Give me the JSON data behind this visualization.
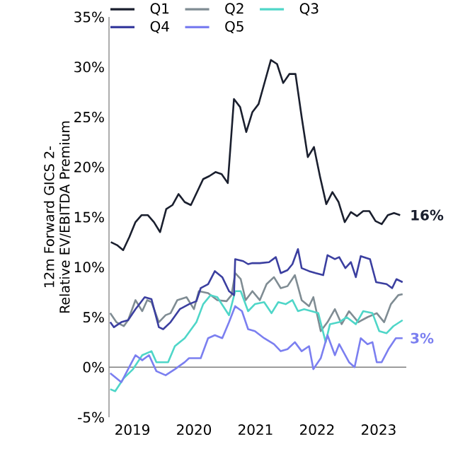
{
  "chart_data": {
    "type": "line",
    "ylabel": "12m Forward GICS 2-Relative EV/EBITDA Premium",
    "legend": "top left",
    "xlim": [
      2018.62,
      2023.45
    ],
    "xticks": [
      2019,
      2020,
      2021,
      2022,
      2023
    ],
    "ylim": [
      -5,
      35
    ],
    "yticks": [
      {
        "value": -5,
        "label": "-5%"
      },
      {
        "value": 0,
        "label": "0%"
      },
      {
        "value": 5,
        "label": "5%"
      },
      {
        "value": 10,
        "label": "10%"
      },
      {
        "value": 15,
        "label": "15%"
      },
      {
        "value": 20,
        "label": "20%"
      },
      {
        "value": 25,
        "label": "25%"
      },
      {
        "value": 30,
        "label": "30%"
      },
      {
        "value": 35,
        "label": "35%"
      }
    ],
    "ref_lines": [
      {
        "axis": "y",
        "value": 0,
        "color": "#7f7f7f"
      }
    ],
    "annotations": [
      {
        "text": "16%",
        "x": 2023.39,
        "y": 15.2
      },
      {
        "text": "3%",
        "x": 2023.39,
        "y": 2.9
      }
    ],
    "series": [
      {
        "name": "Q1",
        "color": "#1a1f2e",
        "x": [
          2018.65,
          2018.75,
          2018.85,
          2018.95,
          2019.05,
          2019.15,
          2019.25,
          2019.35,
          2019.45,
          2019.55,
          2019.65,
          2019.75,
          2019.85,
          2019.95,
          2020.05,
          2020.15,
          2020.25,
          2020.35,
          2020.45,
          2020.55,
          2020.65,
          2020.75,
          2020.85,
          2020.95,
          2021.05,
          2021.15,
          2021.25,
          2021.35,
          2021.45,
          2021.55,
          2021.65,
          2021.75,
          2021.85,
          2021.95,
          2022.05,
          2022.15,
          2022.25,
          2022.35,
          2022.45,
          2022.55,
          2022.65,
          2022.75,
          2022.85,
          2022.95,
          2023.05,
          2023.15,
          2023.25,
          2023.35
        ],
        "values": [
          12.5,
          12.2,
          11.7,
          13.0,
          14.5,
          15.2,
          15.2,
          14.5,
          13.5,
          15.8,
          16.2,
          17.3,
          16.5,
          16.2,
          17.5,
          18.8,
          19.1,
          19.5,
          19.3,
          18.4,
          26.8,
          26.0,
          23.5,
          25.5,
          26.3,
          28.5,
          30.7,
          30.3,
          28.4,
          29.3,
          29.3,
          25.0,
          21.0,
          22.0,
          19.0,
          16.3,
          17.5,
          16.5,
          14.5,
          15.5,
          15.1,
          15.6,
          15.6,
          14.6,
          14.3,
          15.2,
          15.4,
          15.2
        ]
      },
      {
        "name": "Q2",
        "color": "#7f8c93",
        "x": [
          2018.64,
          2018.74,
          2018.86,
          2018.93,
          2019.05,
          2019.16,
          2019.24,
          2019.31,
          2019.43,
          2019.54,
          2019.62,
          2019.73,
          2019.88,
          2020.0,
          2020.08,
          2020.23,
          2020.38,
          2020.53,
          2020.61,
          2020.67,
          2020.76,
          2020.84,
          2020.95,
          2021.07,
          2021.18,
          2021.3,
          2021.41,
          2021.52,
          2021.64,
          2021.75,
          2021.87,
          2021.94,
          2022.06,
          2022.17,
          2022.29,
          2022.4,
          2022.52,
          2022.67,
          2022.82,
          2022.97,
          2023.09,
          2023.2,
          2023.32,
          2023.39
        ],
        "values": [
          5.4,
          4.5,
          4.1,
          4.7,
          6.7,
          5.6,
          6.7,
          6.5,
          4.5,
          5.2,
          5.4,
          6.7,
          7.0,
          5.8,
          7.6,
          7.4,
          6.7,
          6.6,
          7.2,
          9.4,
          8.8,
          6.7,
          7.6,
          6.7,
          8.3,
          9.0,
          7.9,
          8.1,
          9.2,
          6.7,
          6.1,
          7.0,
          3.6,
          4.5,
          5.8,
          4.3,
          5.6,
          4.5,
          5.0,
          5.4,
          4.5,
          6.3,
          7.2,
          7.3
        ]
      },
      {
        "name": "Q3",
        "color": "#4fd6c8",
        "x": [
          2018.64,
          2018.72,
          2018.86,
          2019.01,
          2019.16,
          2019.31,
          2019.39,
          2019.5,
          2019.58,
          2019.69,
          2019.85,
          2020.04,
          2020.15,
          2020.27,
          2020.38,
          2020.57,
          2020.67,
          2020.76,
          2020.88,
          2020.99,
          2021.14,
          2021.26,
          2021.37,
          2021.49,
          2021.6,
          2021.69,
          2021.79,
          2021.91,
          2022.02,
          2022.14,
          2022.21,
          2022.36,
          2022.48,
          2022.63,
          2022.75,
          2022.9,
          2023.01,
          2023.13,
          2023.24,
          2023.39
        ],
        "values": [
          -2.2,
          -2.4,
          -1.1,
          -0.2,
          1.2,
          1.6,
          0.5,
          0.5,
          0.5,
          2.1,
          2.9,
          4.5,
          6.3,
          7.2,
          7.0,
          5.2,
          7.6,
          7.6,
          5.6,
          6.3,
          6.5,
          5.4,
          6.5,
          6.3,
          6.7,
          5.6,
          5.8,
          5.6,
          5.4,
          2.5,
          4.3,
          4.5,
          5.0,
          4.3,
          5.6,
          5.4,
          3.6,
          3.4,
          4.1,
          4.7
        ]
      },
      {
        "name": "Q4",
        "color": "#3b3fa0",
        "x": [
          2018.64,
          2018.7,
          2018.82,
          2018.93,
          2019.05,
          2019.2,
          2019.31,
          2019.43,
          2019.5,
          2019.62,
          2019.77,
          2019.92,
          2020.04,
          2020.11,
          2020.23,
          2020.34,
          2020.46,
          2020.57,
          2020.65,
          2020.67,
          2020.8,
          2020.88,
          2020.95,
          2021.07,
          2021.22,
          2021.33,
          2021.41,
          2021.52,
          2021.6,
          2021.69,
          2021.75,
          2021.87,
          2021.98,
          2022.1,
          2022.17,
          2022.29,
          2022.36,
          2022.46,
          2022.55,
          2022.63,
          2022.71,
          2022.86,
          2022.96,
          2023.13,
          2023.22,
          2023.29,
          2023.39
        ],
        "values": [
          4.5,
          4.0,
          4.5,
          4.7,
          5.8,
          7.0,
          6.8,
          4.0,
          3.8,
          4.5,
          5.8,
          6.3,
          6.6,
          7.9,
          8.3,
          9.6,
          9.0,
          7.6,
          7.2,
          10.8,
          10.6,
          10.3,
          10.4,
          10.4,
          10.5,
          11.0,
          9.4,
          9.7,
          10.3,
          11.8,
          9.9,
          9.6,
          9.4,
          9.2,
          11.2,
          10.8,
          11.0,
          9.9,
          10.5,
          9.0,
          11.1,
          10.8,
          8.5,
          8.3,
          7.9,
          8.8,
          8.5
        ]
      },
      {
        "name": "Q5",
        "color": "#7b7ff0",
        "x": [
          2018.64,
          2018.82,
          2018.93,
          2019.05,
          2019.16,
          2019.27,
          2019.39,
          2019.54,
          2019.69,
          2019.85,
          2019.92,
          2020.0,
          2020.11,
          2020.23,
          2020.34,
          2020.46,
          2020.57,
          2020.67,
          2020.78,
          2020.88,
          2020.99,
          2021.14,
          2021.3,
          2021.41,
          2021.52,
          2021.64,
          2021.75,
          2021.87,
          2021.94,
          2022.06,
          2022.17,
          2022.29,
          2022.36,
          2022.52,
          2022.61,
          2022.71,
          2022.82,
          2022.9,
          2022.97,
          2023.05,
          2023.16,
          2023.28,
          2023.39
        ],
        "values": [
          -0.6,
          -1.5,
          -0.2,
          1.2,
          0.7,
          1.2,
          -0.4,
          -0.8,
          -0.2,
          0.5,
          0.9,
          0.9,
          0.9,
          2.9,
          3.2,
          2.9,
          4.5,
          6.1,
          5.6,
          3.8,
          3.6,
          2.9,
          2.3,
          1.6,
          1.8,
          2.5,
          1.6,
          2.1,
          -0.2,
          0.9,
          3.2,
          1.2,
          2.3,
          0.5,
          0.0,
          2.9,
          2.3,
          2.5,
          0.5,
          0.5,
          1.8,
          2.9,
          2.9
        ]
      }
    ]
  }
}
